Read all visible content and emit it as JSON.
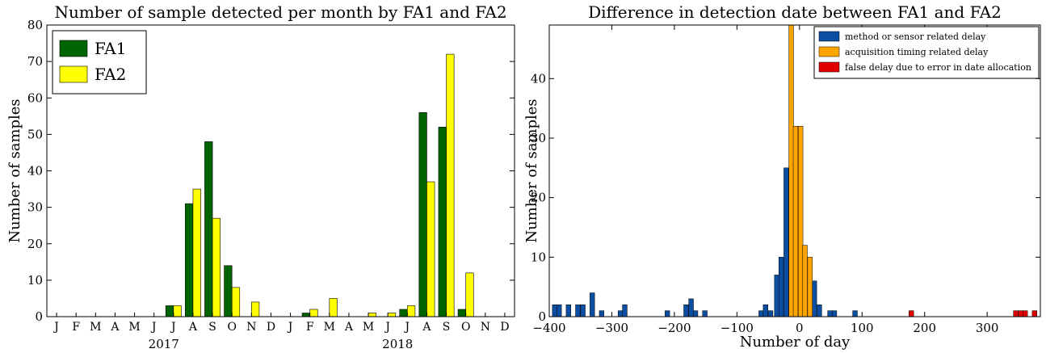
{
  "chart_data": [
    {
      "type": "bar",
      "title": "Number of sample detected per month by FA1 and FA2",
      "ylabel": "Number of samples",
      "xlabel": "",
      "ylim": [
        0,
        80
      ],
      "yticks": [
        0,
        10,
        20,
        30,
        40,
        50,
        60,
        70,
        80
      ],
      "grid": false,
      "legend_position": "top-left",
      "categories": [
        "J",
        "F",
        "M",
        "A",
        "M",
        "J",
        "J",
        "A",
        "S",
        "O",
        "N",
        "D",
        "J",
        "F",
        "M",
        "A",
        "M",
        "J",
        "J",
        "A",
        "S",
        "O",
        "N",
        "D"
      ],
      "year_labels": [
        "2017",
        "2018"
      ],
      "series": [
        {
          "name": "FA1",
          "color": "#006400",
          "values": [
            0,
            0,
            0,
            0,
            0,
            0,
            3,
            31,
            48,
            14,
            0,
            0,
            0,
            1,
            0,
            0,
            0,
            0,
            2,
            56,
            52,
            2,
            0,
            0
          ]
        },
        {
          "name": "FA2",
          "color": "#ffff00",
          "values": [
            0,
            0,
            0,
            0,
            0,
            0,
            3,
            35,
            27,
            8,
            4,
            0,
            0,
            2,
            5,
            0,
            1,
            1,
            3,
            37,
            72,
            12,
            0,
            0
          ]
        }
      ]
    },
    {
      "type": "bar",
      "subtype": "histogram",
      "title": "Difference in detection date between FA1 and FA2",
      "xlabel": "Number of day",
      "ylabel": "Number of samples",
      "xlim": [
        -400,
        385
      ],
      "ylim": [
        0,
        49
      ],
      "xticks": [
        -400,
        -300,
        -200,
        -100,
        0,
        100,
        200,
        300
      ],
      "yticks": [
        0,
        10,
        20,
        30,
        40
      ],
      "xtick_labels": [
        "−400",
        "−300",
        "−200",
        "−100",
        "0",
        "100",
        "200",
        "300"
      ],
      "grid": false,
      "legend_position": "top-right",
      "bin_width": 7.5,
      "series": [
        {
          "name": "method or sensor related delay",
          "color": "#0b4ea2",
          "bins": [
            [
              -395,
              2
            ],
            [
              -388,
              2
            ],
            [
              -373,
              2
            ],
            [
              -358,
              2
            ],
            [
              -350,
              2
            ],
            [
              -335,
              4
            ],
            [
              -320,
              1
            ],
            [
              -290,
              1
            ],
            [
              -283,
              2
            ],
            [
              -215,
              1
            ],
            [
              -185,
              2
            ],
            [
              -177,
              3
            ],
            [
              -170,
              1
            ],
            [
              -155,
              1
            ],
            [
              -65,
              1
            ],
            [
              -58,
              2
            ],
            [
              -50,
              1
            ],
            [
              -40,
              7
            ],
            [
              -33,
              10
            ],
            [
              -25,
              25
            ],
            [
              20,
              6
            ],
            [
              28,
              2
            ],
            [
              45,
              1
            ],
            [
              52,
              1
            ],
            [
              85,
              1
            ]
          ]
        },
        {
          "name": "acquisition timing related delay",
          "color": "#ffa500",
          "bins": [
            [
              -17,
              49
            ],
            [
              -10,
              32
            ],
            [
              -2,
              32
            ],
            [
              5,
              12
            ],
            [
              13,
              10
            ]
          ]
        },
        {
          "name": "false delay due to error in date allocation",
          "color": "#e00000",
          "bins": [
            [
              175,
              1
            ],
            [
              342,
              1
            ],
            [
              350,
              1
            ],
            [
              357,
              1
            ],
            [
              372,
              1
            ]
          ]
        }
      ]
    }
  ]
}
